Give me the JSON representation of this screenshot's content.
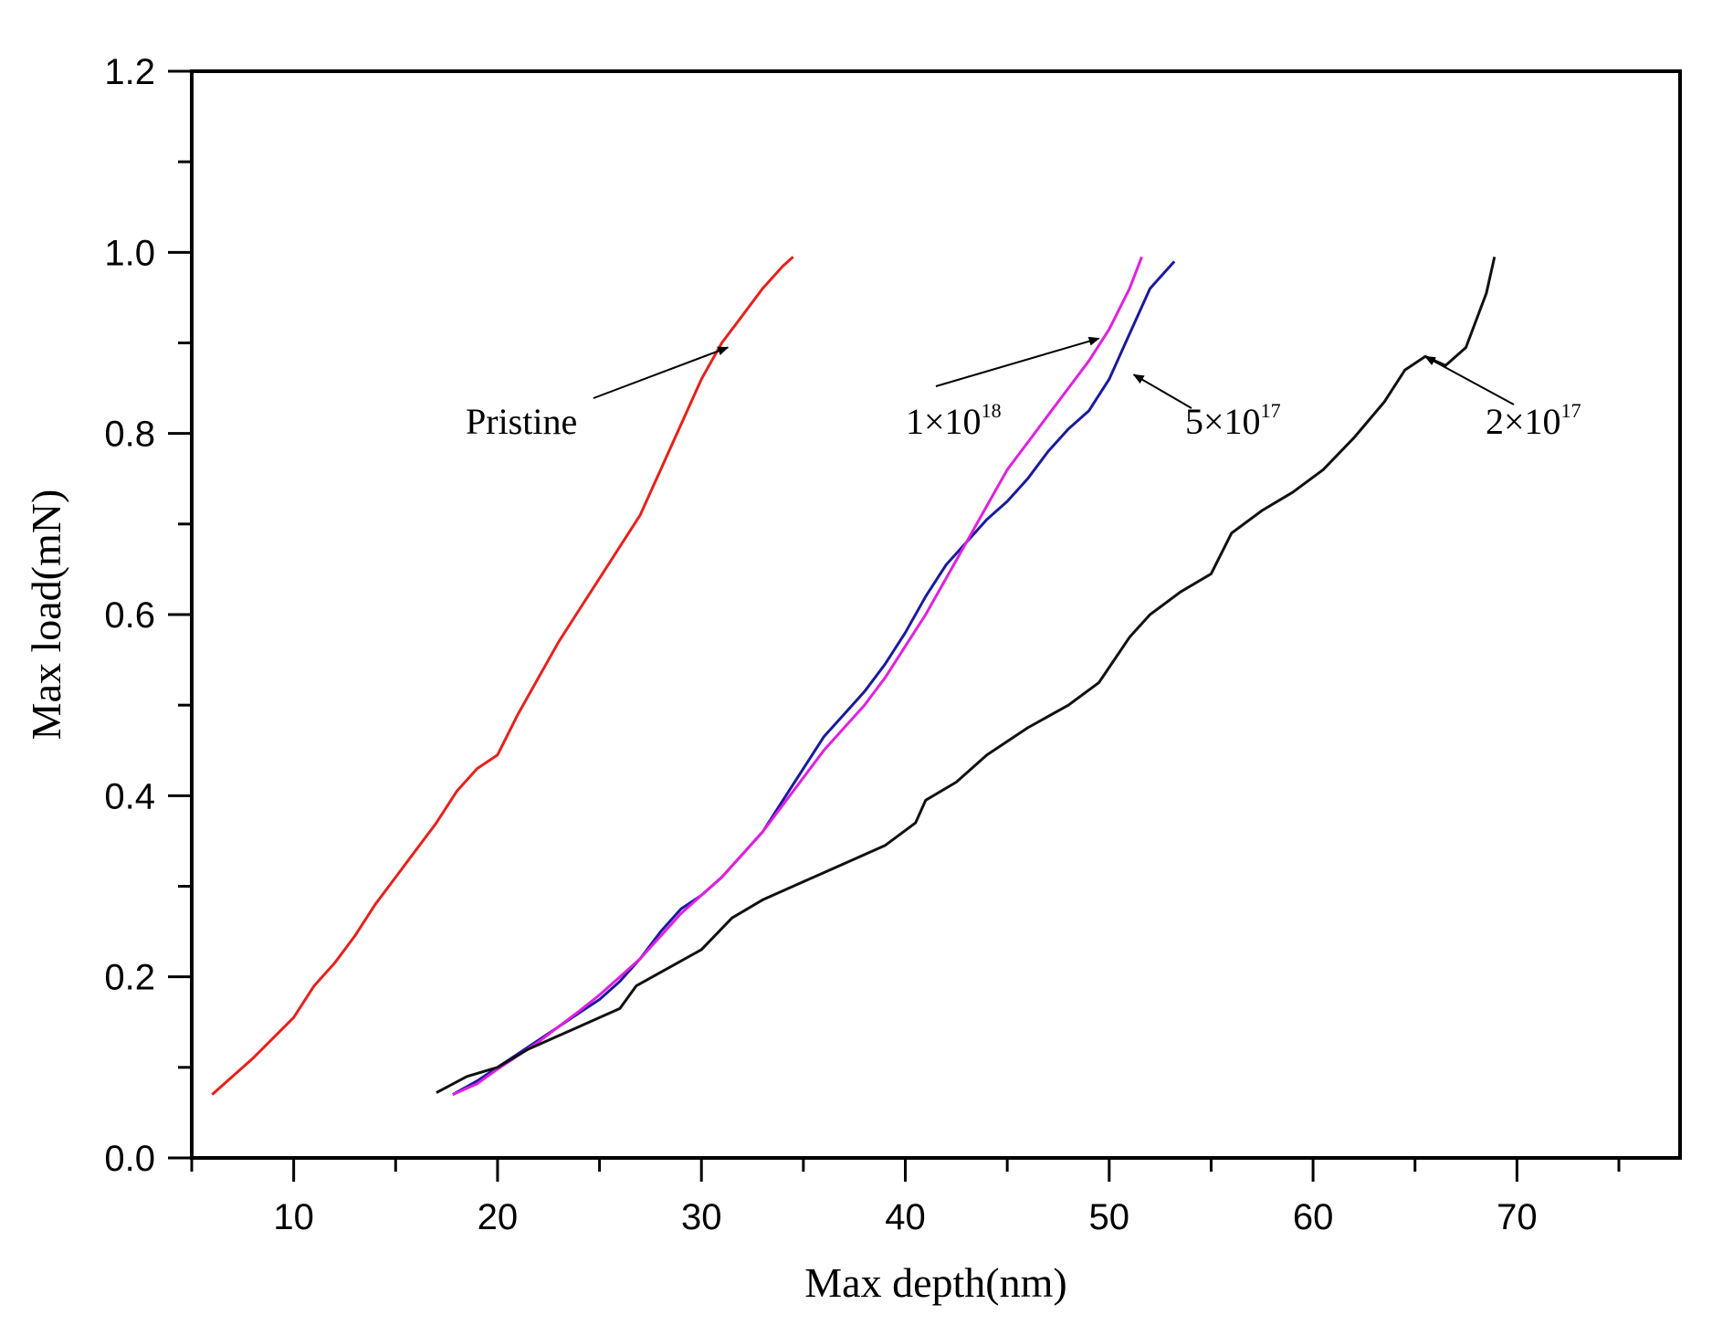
{
  "chart_data": {
    "type": "line",
    "title": "",
    "xlabel": "Max depth(nm)",
    "ylabel": "Max load(mN)",
    "xlim": [
      5,
      78
    ],
    "ylim": [
      0.0,
      1.2
    ],
    "xticks": [
      10,
      20,
      30,
      40,
      50,
      60,
      70
    ],
    "yticks": [
      0.0,
      0.2,
      0.4,
      0.6,
      0.8,
      1.0,
      1.2
    ],
    "xtick_labels": [
      "10",
      "20",
      "30",
      "40",
      "50",
      "60",
      "70"
    ],
    "ytick_labels": [
      "0.0",
      "0.2",
      "0.4",
      "0.6",
      "0.8",
      "1.0",
      "1.2"
    ],
    "grid": false,
    "legend": "none",
    "series": [
      {
        "color": "#e8201c",
        "x": [
          6.0,
          8.0,
          10.0,
          11.0,
          12.0,
          13.0,
          14.0,
          15.0,
          16.0,
          17.0,
          18.0,
          19.0,
          20.0,
          21.0,
          22.0,
          23.0,
          24.0,
          25.0,
          26.0,
          27.0,
          28.0,
          29.0,
          30.0,
          31.0,
          32.0,
          33.0,
          34.0,
          34.5
        ],
        "y": [
          0.07,
          0.11,
          0.155,
          0.19,
          0.215,
          0.245,
          0.28,
          0.31,
          0.34,
          0.37,
          0.405,
          0.43,
          0.445,
          0.49,
          0.53,
          0.57,
          0.605,
          0.64,
          0.675,
          0.71,
          0.76,
          0.81,
          0.86,
          0.9,
          0.93,
          0.96,
          0.985,
          0.995
        ]
      },
      {
        "color": "#1a1aa0",
        "x": [
          17.8,
          19.0,
          20.0,
          21.0,
          22.0,
          23.0,
          24.0,
          25.0,
          26.0,
          27.0,
          28.0,
          29.0,
          30.0,
          31.0,
          32.0,
          33.0,
          34.0,
          35.0,
          36.0,
          37.0,
          38.0,
          39.0,
          40.0,
          41.0,
          42.0,
          43.0,
          44.0,
          45.0,
          46.0,
          47.0,
          48.0,
          49.0,
          50.0,
          51.0,
          52.0,
          53.2
        ],
        "y": [
          0.07,
          0.085,
          0.1,
          0.115,
          0.13,
          0.145,
          0.16,
          0.175,
          0.195,
          0.22,
          0.25,
          0.275,
          0.29,
          0.31,
          0.335,
          0.36,
          0.395,
          0.43,
          0.465,
          0.49,
          0.515,
          0.545,
          0.58,
          0.62,
          0.655,
          0.68,
          0.705,
          0.725,
          0.75,
          0.78,
          0.805,
          0.825,
          0.86,
          0.91,
          0.96,
          0.99
        ]
      },
      {
        "color": "#e020e0",
        "x": [
          17.8,
          19.0,
          20.0,
          21.0,
          22.0,
          23.0,
          24.0,
          25.0,
          26.0,
          27.0,
          28.0,
          29.0,
          30.0,
          31.0,
          32.0,
          33.0,
          34.0,
          35.0,
          36.0,
          37.0,
          38.0,
          39.0,
          40.0,
          41.0,
          42.0,
          43.0,
          44.0,
          45.0,
          46.0,
          47.0,
          48.0,
          49.0,
          50.0,
          51.0,
          51.6
        ],
        "y": [
          0.07,
          0.082,
          0.098,
          0.113,
          0.128,
          0.145,
          0.162,
          0.18,
          0.2,
          0.22,
          0.245,
          0.27,
          0.29,
          0.31,
          0.335,
          0.36,
          0.39,
          0.42,
          0.45,
          0.475,
          0.5,
          0.53,
          0.565,
          0.6,
          0.64,
          0.68,
          0.72,
          0.76,
          0.79,
          0.82,
          0.85,
          0.88,
          0.915,
          0.96,
          0.995
        ]
      },
      {
        "color": "#111111",
        "x": [
          17.0,
          18.5,
          20.0,
          21.5,
          23.0,
          24.5,
          26.0,
          26.8,
          28.0,
          30.0,
          31.5,
          33.0,
          35.0,
          37.0,
          39.0,
          40.5,
          41.0,
          42.5,
          44.0,
          46.0,
          48.0,
          49.5,
          51.0,
          52.0,
          53.5,
          55.0,
          56.0,
          57.5,
          59.0,
          60.5,
          62.0,
          63.5,
          64.5,
          65.5,
          66.5,
          67.5,
          68.5,
          68.9
        ],
        "y": [
          0.072,
          0.09,
          0.1,
          0.12,
          0.135,
          0.15,
          0.165,
          0.19,
          0.205,
          0.23,
          0.265,
          0.285,
          0.305,
          0.325,
          0.345,
          0.37,
          0.395,
          0.415,
          0.445,
          0.475,
          0.5,
          0.525,
          0.575,
          0.6,
          0.625,
          0.645,
          0.69,
          0.715,
          0.735,
          0.76,
          0.795,
          0.835,
          0.87,
          0.885,
          0.875,
          0.895,
          0.955,
          0.995
        ]
      }
    ],
    "annotations": [
      {
        "text": "Pristine",
        "sup": "",
        "target": [
          31.3,
          0.895
        ]
      },
      {
        "text": "1×10",
        "sup": "18",
        "target": [
          49.5,
          0.905
        ]
      },
      {
        "text": "5×10",
        "sup": "17",
        "target": [
          51.2,
          0.865
        ]
      },
      {
        "text": "2×10",
        "sup": "17",
        "target": [
          65.5,
          0.885
        ]
      }
    ]
  }
}
